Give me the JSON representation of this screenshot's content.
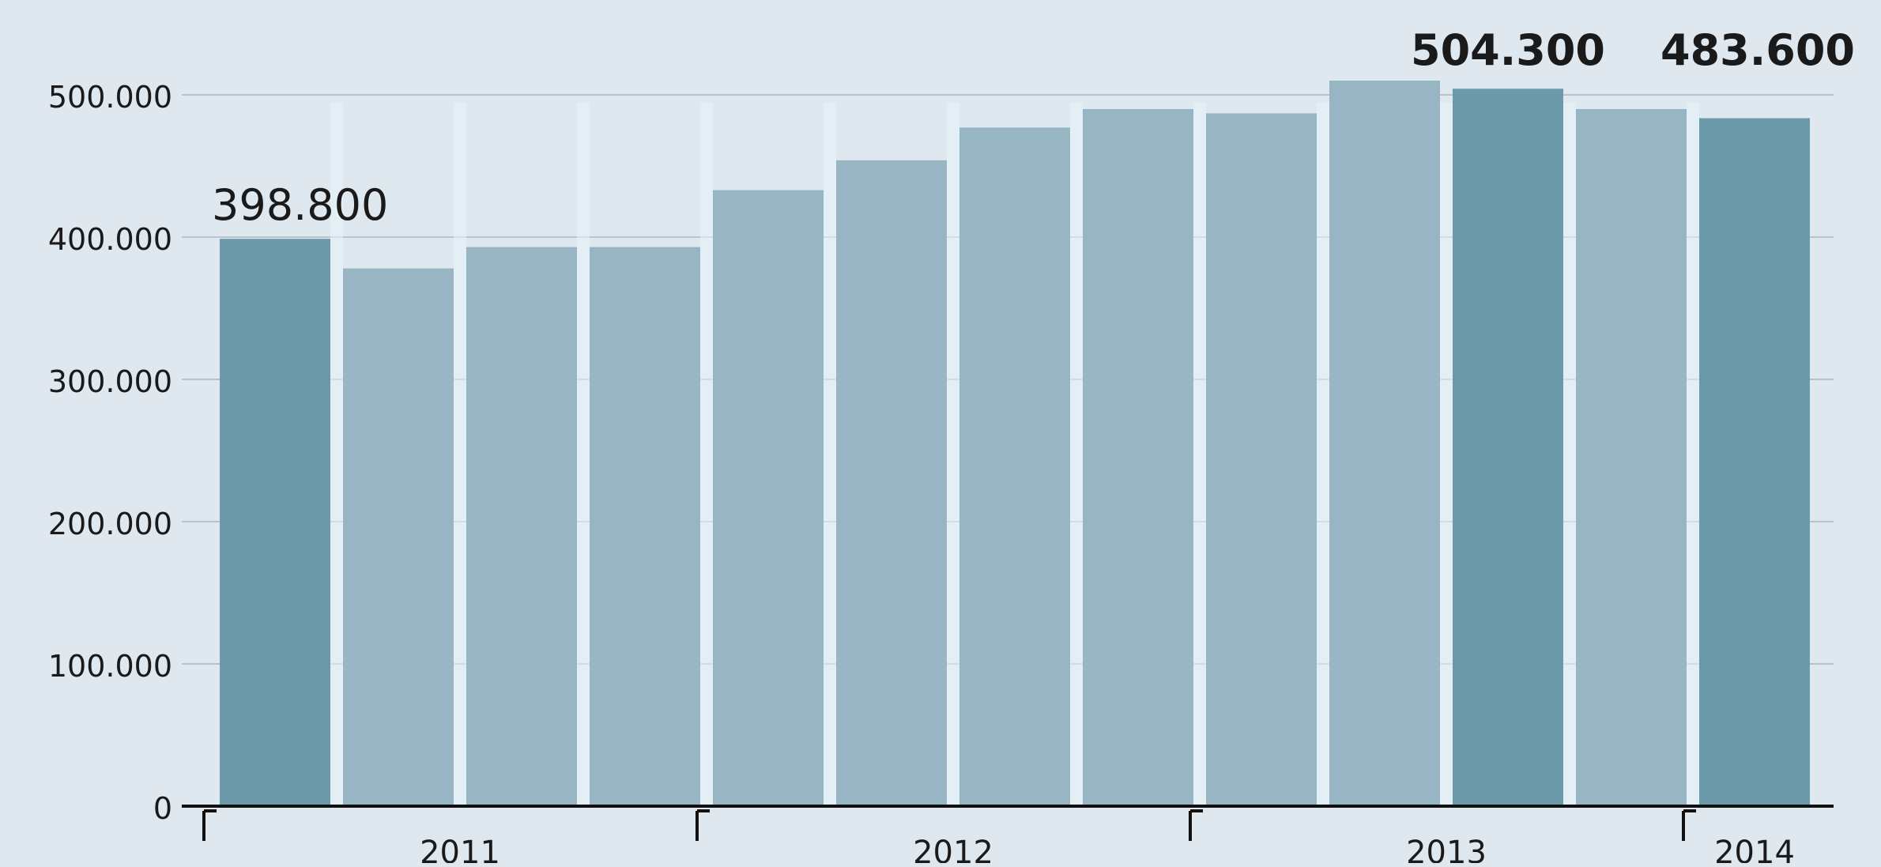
{
  "chart_data": {
    "type": "bar",
    "title": "",
    "xlabel": "",
    "ylabel": "",
    "ylim": [
      0,
      520000
    ],
    "y_ticks": [
      {
        "value": 0,
        "label": "0"
      },
      {
        "value": 100000,
        "label": "100.000"
      },
      {
        "value": 200000,
        "label": "200.000"
      },
      {
        "value": 300000,
        "label": "300.000"
      },
      {
        "value": 400000,
        "label": "400.000"
      },
      {
        "value": 500000,
        "label": "500.000"
      }
    ],
    "grid": true,
    "year_groups": [
      {
        "label": "2011",
        "start_bar": 0,
        "count": 4
      },
      {
        "label": "2012",
        "start_bar": 4,
        "count": 4
      },
      {
        "label": "2013",
        "start_bar": 8,
        "count": 4
      },
      {
        "label": "2014",
        "start_bar": 12,
        "count": 1
      }
    ],
    "values": [
      398800,
      378000,
      393000,
      393000,
      433000,
      454000,
      477000,
      490000,
      487000,
      510000,
      504300,
      490000,
      483600
    ],
    "data_labels": [
      {
        "index": 0,
        "text": "398.800"
      },
      {
        "index": 10,
        "text": "504.300"
      },
      {
        "index": 12,
        "text": "483.600"
      }
    ],
    "colors": {
      "highlight": "#6d9aab",
      "normal": "#98b5c3",
      "background": "#dfe8ef",
      "gap": "#e7f3fa",
      "grid": "#b9c3ca",
      "axis": "#111111",
      "text": "#1a1a1a"
    },
    "highlight_indices": [
      0,
      10,
      12
    ]
  }
}
